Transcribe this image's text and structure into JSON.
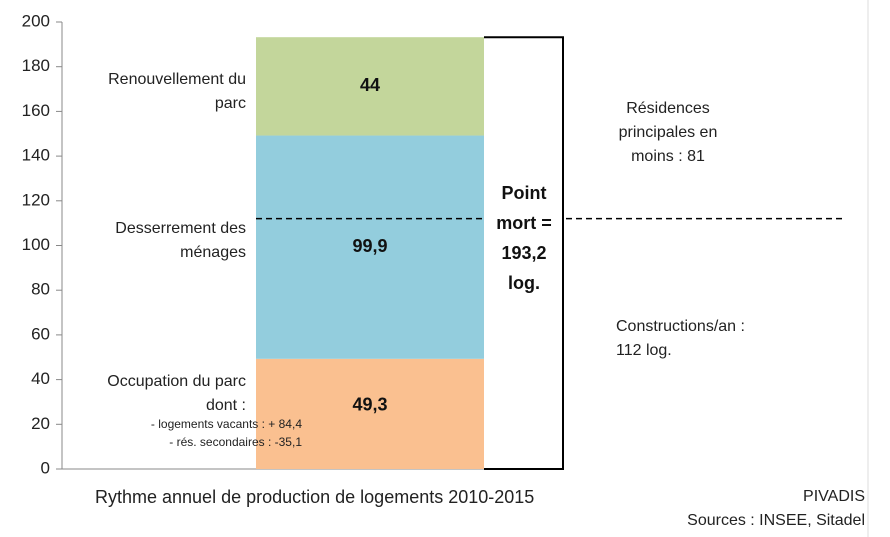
{
  "chart_data": {
    "type": "stacked-bar",
    "xlabel": "Rythme annuel de production de logements 2010-2015",
    "categories": [
      null
    ],
    "series": [
      {
        "name": "Occupation du parc dont :",
        "color": "#fac090",
        "values": [
          49.3
        ],
        "value_labels": [
          "49,3"
        ],
        "details": [
          "- logements vacants : + 84,4",
          "- rés. secondaires : -35,1"
        ]
      },
      {
        "name": "Desserrement des ménages",
        "color": "#93cddd",
        "values": [
          99.9
        ],
        "value_labels": [
          "99,9"
        ]
      },
      {
        "name": "Renouvellement du parc",
        "color": "#c3d69b",
        "values": [
          44
        ],
        "value_labels": [
          "44"
        ]
      }
    ],
    "ylim": [
      0,
      200
    ],
    "yticks": [
      0,
      20,
      40,
      60,
      80,
      100,
      120,
      140,
      160,
      180,
      200
    ],
    "total_label": "Point mort = 193,2 log.",
    "reference_line": 112,
    "annotations": [
      "Résidences principales en moins : 81",
      "Constructions/an : 112 log."
    ],
    "source": [
      "PIVADIS",
      "Sources : INSEE, Sitadel"
    ]
  }
}
